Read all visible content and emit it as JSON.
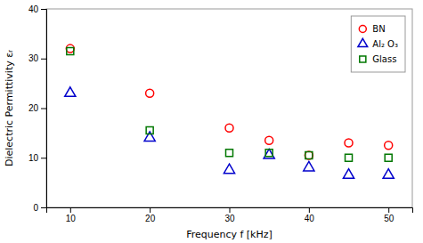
{
  "chart_data": {
    "type": "scatter",
    "xlabel": "Frequency f [kHz]",
    "ylabel": "Dielectric Permittivity εᵣ",
    "x": [
      10,
      20,
      30,
      35,
      40,
      45,
      50
    ],
    "series": [
      {
        "name": "BN",
        "color": "#ff0000",
        "marker": "circle",
        "values": [
          32,
          23,
          16,
          13.5,
          10.5,
          13,
          12.5
        ]
      },
      {
        "name": "Al₂ O₃",
        "color": "#0000cc",
        "marker": "triangle",
        "values": [
          23,
          14,
          7.5,
          10.5,
          8,
          6.5,
          6.5
        ]
      },
      {
        "name": "Glass",
        "color": "#007700",
        "marker": "square",
        "values": [
          31.5,
          15.5,
          11,
          11,
          10.5,
          10,
          10
        ]
      }
    ],
    "xlim": [
      7,
      53
    ],
    "ylim": [
      0,
      40
    ],
    "xticks": [
      10,
      20,
      30,
      40,
      50
    ],
    "yticks": [
      0,
      10,
      20,
      30,
      40
    ],
    "grid": false,
    "legend": "upper right"
  }
}
